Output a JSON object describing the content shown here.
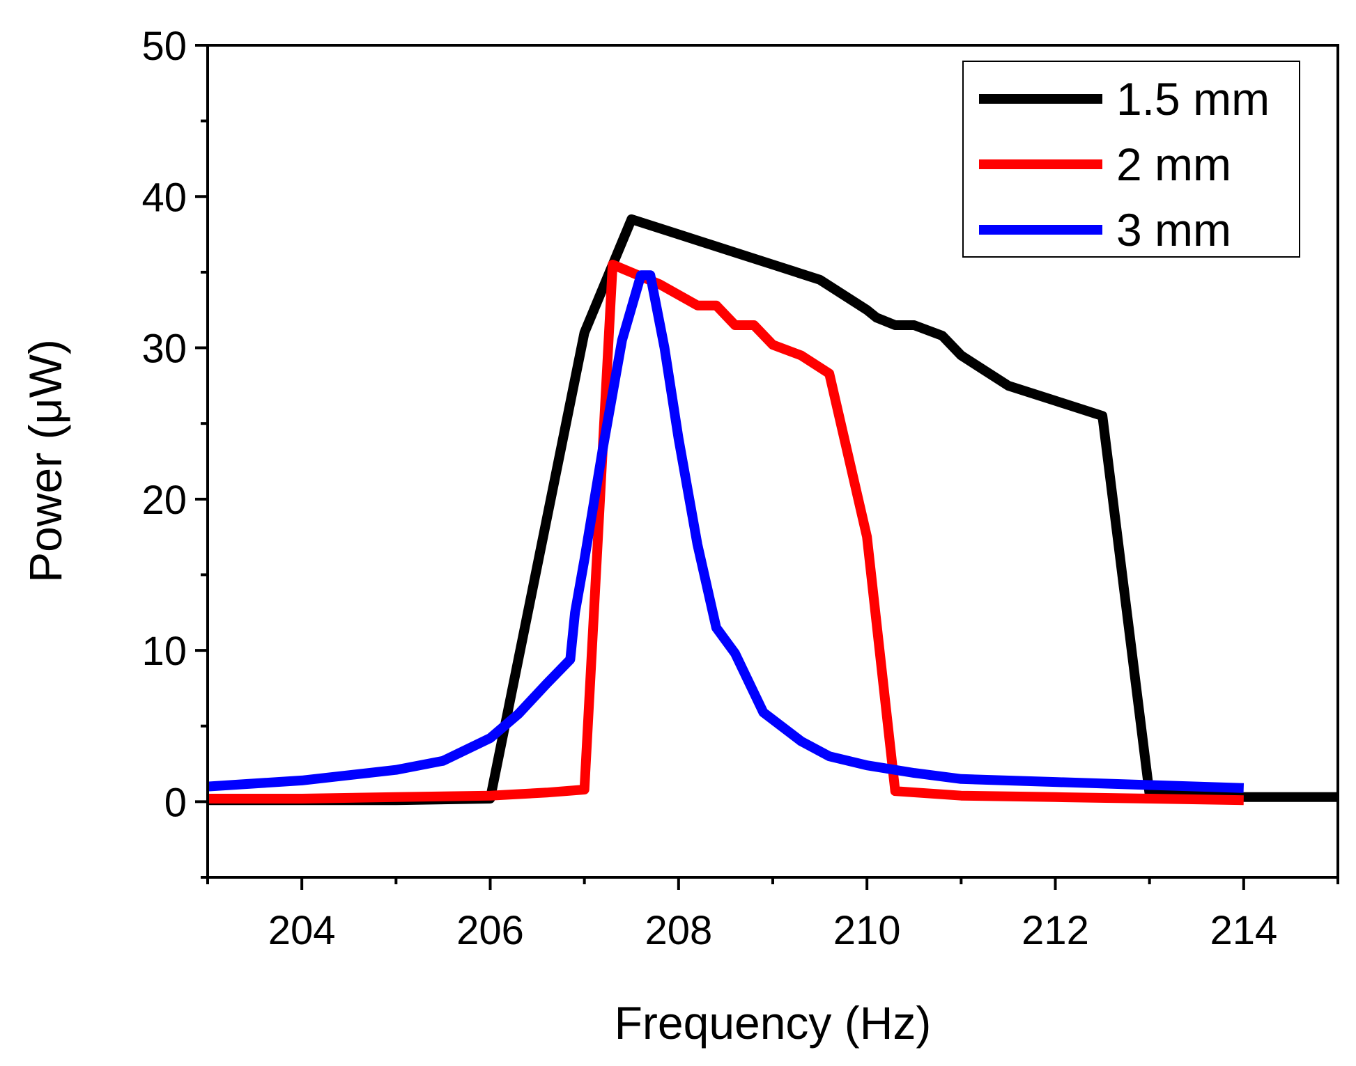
{
  "chart_data": {
    "type": "line",
    "title": "",
    "xlabel": "Frequency (Hz)",
    "ylabel": "Power (μW)",
    "xlim": [
      203,
      215
    ],
    "ylim": [
      -5,
      50
    ],
    "x_ticks": [
      204,
      206,
      208,
      210,
      212,
      214
    ],
    "x_tick_labels": [
      "204",
      "206",
      "208",
      "210",
      "212",
      "214"
    ],
    "x_minor_ticks": [
      203,
      205,
      207,
      209,
      211,
      213,
      215
    ],
    "y_ticks": [
      0,
      10,
      20,
      30,
      40,
      50
    ],
    "y_tick_labels": [
      "0",
      "10",
      "20",
      "30",
      "40",
      "50"
    ],
    "y_minor_ticks": [
      -5,
      5,
      15,
      25,
      35,
      45
    ],
    "grid": false,
    "legend_position": "top-right",
    "series": [
      {
        "name": "1.5 mm",
        "color": "#000000",
        "x": [
          203,
          204,
          205,
          206,
          207,
          207.5,
          208,
          208.5,
          209,
          209.5,
          210,
          210.1,
          210.3,
          210.5,
          210.8,
          211,
          211.5,
          212,
          212.5,
          213,
          214,
          215
        ],
        "y": [
          0.1,
          0.1,
          0.1,
          0.2,
          31,
          38.5,
          37.5,
          36.5,
          35.5,
          34.5,
          32.5,
          32.0,
          31.5,
          31.5,
          30.8,
          29.5,
          27.5,
          26.5,
          25.5,
          0.5,
          0.3,
          0.3
        ]
      },
      {
        "name": "2 mm",
        "color": "#ff0000",
        "x": [
          203,
          204,
          205,
          206,
          206.6,
          207,
          207.3,
          207.8,
          208.2,
          208.4,
          208.6,
          208.8,
          209,
          209.3,
          209.6,
          210,
          210.3,
          211,
          212,
          213,
          214
        ],
        "y": [
          0.2,
          0.2,
          0.3,
          0.4,
          0.6,
          0.8,
          35.5,
          34.2,
          32.8,
          32.8,
          31.5,
          31.5,
          30.2,
          29.5,
          28.3,
          17.5,
          0.7,
          0.4,
          0.3,
          0.2,
          0.1
        ]
      },
      {
        "name": "3 mm",
        "color": "#0000ff",
        "x": [
          203,
          204,
          205,
          205.5,
          206,
          206.3,
          206.6,
          206.85,
          206.9,
          207,
          207.2,
          207.4,
          207.6,
          207.7,
          207.85,
          208,
          208.2,
          208.4,
          208.6,
          208.9,
          209.3,
          209.6,
          210,
          210.5,
          211,
          212,
          213,
          214
        ],
        "y": [
          1.0,
          1.4,
          2.1,
          2.7,
          4.2,
          5.8,
          7.8,
          9.4,
          12.5,
          16,
          23.5,
          30.5,
          34.8,
          34.8,
          30,
          24,
          17,
          11.5,
          9.8,
          5.9,
          4.0,
          3.0,
          2.4,
          1.9,
          1.5,
          1.3,
          1.1,
          0.9
        ]
      }
    ]
  }
}
